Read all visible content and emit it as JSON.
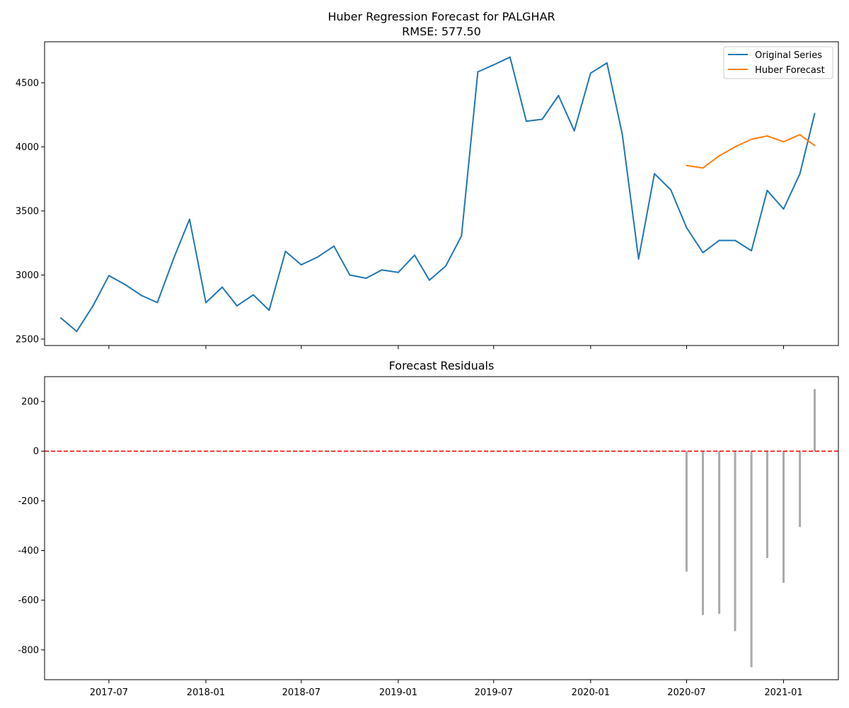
{
  "chart_data": [
    {
      "type": "line",
      "title": "Huber Regression Forecast for PALGHAR",
      "subtitle": "RMSE: 577.50",
      "xlabel": "",
      "ylabel": "",
      "xlim": [
        "2017-03-01",
        "2021-04-15"
      ],
      "ylim": [
        2450,
        4820
      ],
      "yticks": [
        2500,
        3000,
        3500,
        4000,
        4500
      ],
      "xtick_labels": [
        "2017-07",
        "2018-01",
        "2018-07",
        "2019-01",
        "2019-07",
        "2020-01",
        "2020-07",
        "2021-01"
      ],
      "xtick_dates": [
        "2017-07-01",
        "2018-01-01",
        "2018-07-01",
        "2019-01-01",
        "2019-07-01",
        "2020-01-01",
        "2020-07-01",
        "2021-01-01"
      ],
      "legend_position": "upper-right",
      "grid": false,
      "series": [
        {
          "name": "Original Series",
          "color": "#1f77b4",
          "x": [
            "2017-04-01",
            "2017-05-01",
            "2017-06-01",
            "2017-07-01",
            "2017-08-01",
            "2017-09-01",
            "2017-10-01",
            "2017-11-01",
            "2017-12-01",
            "2018-01-01",
            "2018-02-01",
            "2018-03-01",
            "2018-04-01",
            "2018-05-01",
            "2018-06-01",
            "2018-07-01",
            "2018-08-01",
            "2018-09-01",
            "2018-10-01",
            "2018-11-01",
            "2018-12-01",
            "2019-01-01",
            "2019-02-01",
            "2019-03-01",
            "2019-04-01",
            "2019-05-01",
            "2019-06-01",
            "2019-07-01",
            "2019-08-01",
            "2019-09-01",
            "2019-10-01",
            "2019-11-01",
            "2019-12-01",
            "2020-01-01",
            "2020-02-01",
            "2020-03-01",
            "2020-04-01",
            "2020-05-01",
            "2020-06-01",
            "2020-07-01",
            "2020-08-01",
            "2020-09-01",
            "2020-10-01",
            "2020-11-01",
            "2020-12-01",
            "2021-01-01",
            "2021-02-01",
            "2021-03-01"
          ],
          "values": [
            2665,
            2560,
            2760,
            2995,
            2925,
            2840,
            2785,
            3130,
            3435,
            2785,
            2905,
            2760,
            2845,
            2725,
            3185,
            3080,
            3140,
            3225,
            3000,
            2975,
            3040,
            3020,
            3155,
            2960,
            3070,
            3305,
            4585,
            4640,
            4700,
            4200,
            4215,
            4400,
            4125,
            4575,
            4655,
            4100,
            3125,
            3790,
            3665,
            3370,
            3175,
            3270,
            3270,
            3190,
            3660,
            3515,
            3790,
            4260
          ]
        },
        {
          "name": "Huber Forecast",
          "color": "#ff7f0e",
          "x": [
            "2020-07-01",
            "2020-08-01",
            "2020-09-01",
            "2020-10-01",
            "2020-11-01",
            "2020-12-01",
            "2021-01-01",
            "2021-02-01",
            "2021-03-01"
          ],
          "values": [
            3855,
            3835,
            3930,
            4000,
            4060,
            4085,
            4040,
            4095,
            4010
          ]
        }
      ]
    },
    {
      "type": "bar",
      "title": "Forecast Residuals",
      "xlabel": "",
      "ylabel": "",
      "xlim": [
        "2017-03-01",
        "2021-04-15"
      ],
      "ylim": [
        -920,
        300
      ],
      "yticks": [
        -800,
        -600,
        -400,
        -200,
        0,
        200
      ],
      "bar_color": "#aaaaaa",
      "zero_line_color": "#ff0000",
      "grid": false,
      "x": [
        "2020-07-01",
        "2020-08-01",
        "2020-09-01",
        "2020-10-01",
        "2020-11-01",
        "2020-12-01",
        "2021-01-01",
        "2021-02-01",
        "2021-03-01"
      ],
      "values": [
        -485,
        -660,
        -655,
        -725,
        -870,
        -430,
        -530,
        -305,
        250
      ]
    }
  ]
}
